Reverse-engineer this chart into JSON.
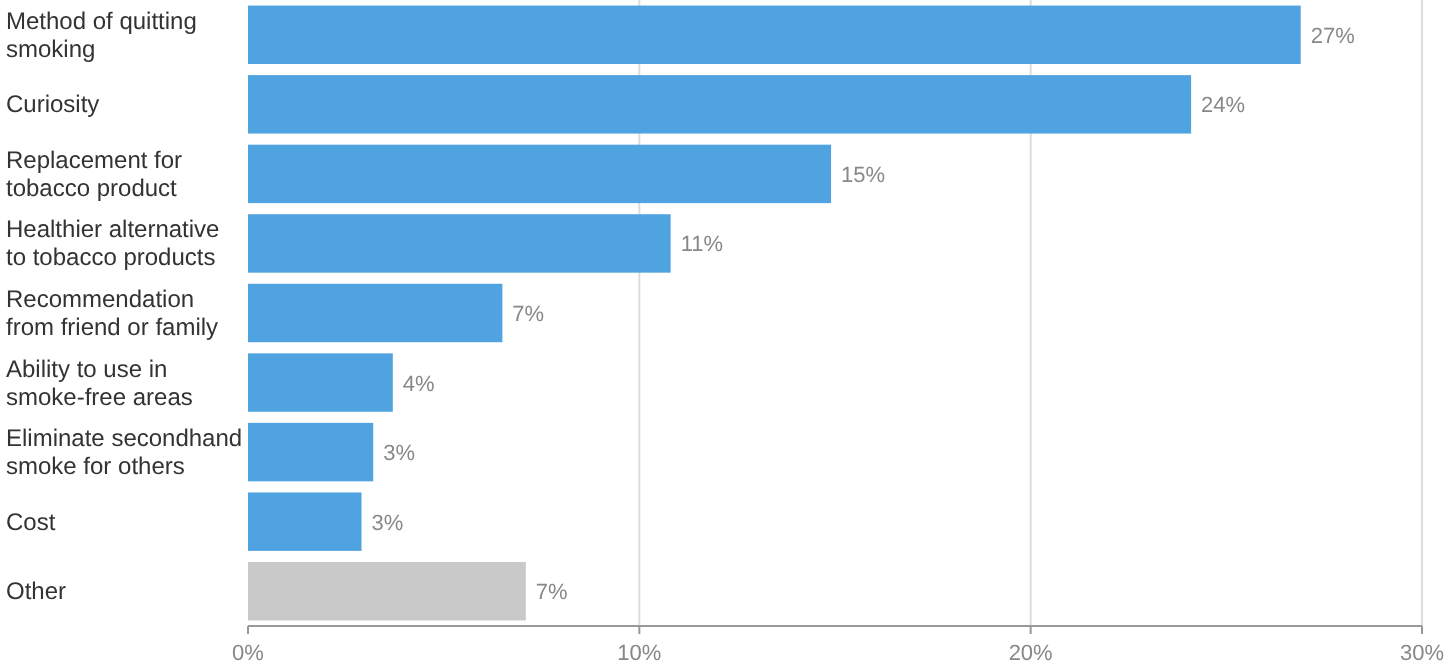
{
  "chart_data": {
    "type": "bar",
    "orientation": "horizontal",
    "categories": [
      "Method of quitting\nsmoking",
      "Curiosity",
      "Replacement for\ntobacco product",
      "Healthier alternative\nto tobacco products",
      "Recommendation\nfrom friend or family",
      "Ability to use in\nsmoke-free areas",
      "Eliminate secondhand\nsmoke for others",
      "Cost",
      "Other"
    ],
    "values": [
      26.9,
      24.1,
      14.9,
      10.8,
      6.5,
      3.7,
      3.2,
      2.9,
      7.1
    ],
    "value_labels": [
      "27%",
      "24%",
      "15%",
      "11%",
      "7%",
      "4%",
      "3%",
      "3%",
      "7%"
    ],
    "colors": [
      "#4fa3e0",
      "#4fa3e0",
      "#4fa3e0",
      "#4fa3e0",
      "#4fa3e0",
      "#4fa3e0",
      "#4fa3e0",
      "#4fa3e0",
      "#c9c9c9"
    ],
    "xlim": [
      0,
      30
    ],
    "xticks": [
      {
        "value": 0,
        "label": "0%"
      },
      {
        "value": 10,
        "label": "10%"
      },
      {
        "value": 20,
        "label": "20%"
      },
      {
        "value": 30,
        "label": "30%"
      }
    ],
    "grid": "x"
  }
}
